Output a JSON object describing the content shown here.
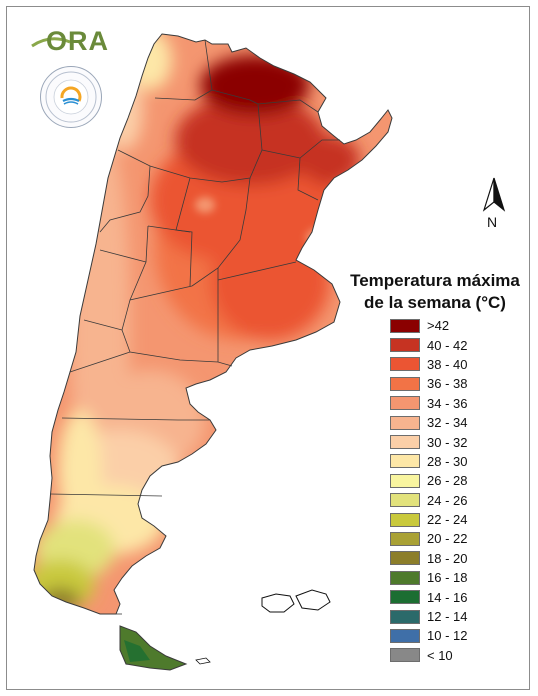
{
  "map": {
    "legend_title_line1": "Temperatura máxima",
    "legend_title_line2": "de la semana (°C)",
    "north_label": "N",
    "logo_text": "ORA",
    "legend": [
      {
        "label": ">42",
        "color": "#8b0000"
      },
      {
        "label": "40 - 42",
        "color": "#c63322"
      },
      {
        "label": "38 - 40",
        "color": "#eb5533"
      },
      {
        "label": "36 - 38",
        "color": "#f27346"
      },
      {
        "label": "34 - 36",
        "color": "#f49670"
      },
      {
        "label": "32 - 34",
        "color": "#f7b48f"
      },
      {
        "label": "30 - 32",
        "color": "#fbcfa8"
      },
      {
        "label": "28 - 30",
        "color": "#fde7a7"
      },
      {
        "label": "26 - 28",
        "color": "#f9f5a0"
      },
      {
        "label": "24 - 26",
        "color": "#e2e27c"
      },
      {
        "label": "22 - 24",
        "color": "#c9c93c"
      },
      {
        "label": "20 - 22",
        "color": "#a9a135"
      },
      {
        "label": "18 - 20",
        "color": "#8c7e2a"
      },
      {
        "label": "16 - 18",
        "color": "#4e7a2c"
      },
      {
        "label": "14 - 16",
        "color": "#1c6e32"
      },
      {
        "label": "12 - 14",
        "color": "#2b6a6a"
      },
      {
        "label": "10 - 12",
        "color": "#3f6fa8"
      },
      {
        "label": "< 10",
        "color": "#888888"
      }
    ]
  }
}
